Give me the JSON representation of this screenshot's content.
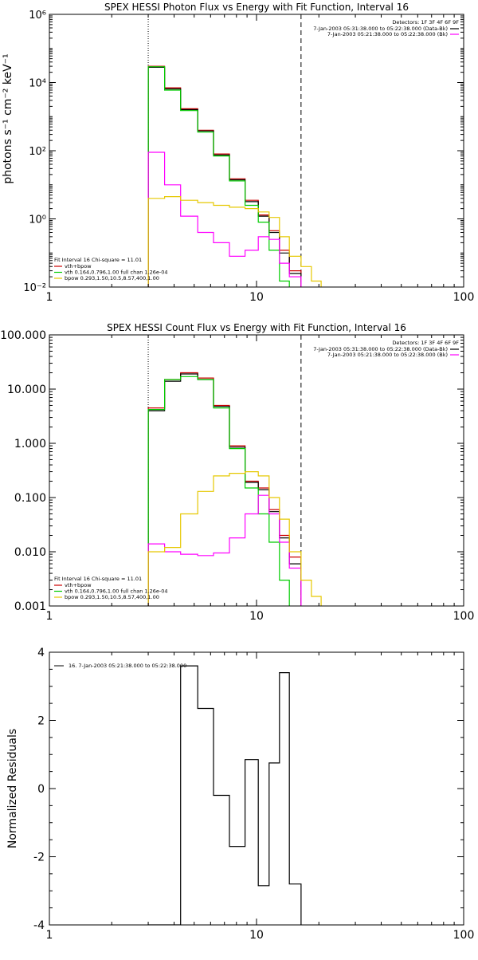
{
  "colors": {
    "data": "#000000",
    "bk": "#cc0000",
    "total": "#ff00ff",
    "vth": "#00cc00",
    "bpow": "#e6c800"
  },
  "chart_data": [
    {
      "type": "line",
      "title": "SPEX HESSI Photon Flux vs Energy with Fit Function, Interval 16",
      "xlabel": "",
      "ylabel": "photons s⁻¹ cm⁻² keV⁻¹",
      "xscale": "log",
      "yscale": "log",
      "xlim": [
        1,
        100
      ],
      "ylim": [
        0.01,
        1000000
      ],
      "x_ticks": [
        "1",
        "10",
        "100"
      ],
      "y_ticks": [
        "10⁻²",
        "10⁰",
        "10²",
        "10⁴",
        "10⁶"
      ],
      "vlines": [
        3,
        16.4
      ],
      "edges": [
        3,
        3.6,
        4.3,
        5.2,
        6.2,
        7.4,
        8.8,
        10.2,
        11.5,
        12.9,
        14.4,
        16.4,
        18.4,
        20.5
      ],
      "series": [
        {
          "key": "bk",
          "values": [
            30000,
            7000,
            1700,
            400,
            80,
            15,
            3.5,
            1.3,
            0.45,
            0.12,
            0.03,
            null,
            null
          ]
        },
        {
          "key": "data",
          "values": [
            28000,
            6500,
            1600,
            380,
            75,
            14,
            3.2,
            1.2,
            0.4,
            0.1,
            0.025,
            null,
            null
          ]
        },
        {
          "key": "vth",
          "values": [
            29000,
            6000,
            1500,
            350,
            70,
            13,
            2.5,
            0.8,
            0.12,
            0.015,
            null,
            null,
            null
          ]
        },
        {
          "key": "total",
          "values": [
            90,
            10,
            1.2,
            0.4,
            0.2,
            0.08,
            0.12,
            0.3,
            0.25,
            0.05,
            0.02,
            null,
            null
          ]
        },
        {
          "key": "bpow",
          "values": [
            4,
            4.5,
            3.5,
            3,
            2.5,
            2.2,
            2,
            1.6,
            1.1,
            0.3,
            0.08,
            0.04,
            0.015
          ]
        }
      ],
      "legend_tr": {
        "head": "Detectors: 1F 3F 4F 6F 9F",
        "lines": [
          "7-Jan-2003 05:31:38.000 to 05:22:38.000 (Data-Bk)",
          "7-Jan-2003 05:21:38.000 to 05:22:38.000 (Bk)"
        ]
      },
      "legend_bl": {
        "head": "Fit Interval 16   Chi-square = 11.01",
        "lines": [
          "vth+bpow",
          "vth 0.164,0.796,1.00  full chan 1.26e-04",
          "bpow 0.293,1.50,10.5,8.57,400,1.00"
        ]
      }
    },
    {
      "type": "line",
      "title": "SPEX HESSI Count Flux vs Energy with Fit Function, Interval 16",
      "xlabel": "",
      "ylabel": "",
      "xscale": "log",
      "yscale": "log",
      "xlim": [
        1,
        100
      ],
      "ylim": [
        0.001,
        100
      ],
      "x_ticks": [
        "1",
        "10",
        "100"
      ],
      "y_ticks": [
        "0.001",
        "0.010",
        "0.100",
        "1.000",
        "10.000",
        "100.000"
      ],
      "vlines": [
        3,
        16.4
      ],
      "edges": [
        3,
        3.6,
        4.3,
        5.2,
        6.2,
        7.4,
        8.8,
        10.2,
        11.5,
        12.9,
        14.4,
        16.4,
        18.4,
        20.5
      ],
      "series": [
        {
          "key": "bk",
          "values": [
            4.5,
            15,
            20,
            16,
            5,
            0.9,
            0.2,
            0.15,
            0.06,
            0.02,
            0.008,
            null,
            null
          ]
        },
        {
          "key": "data",
          "values": [
            4,
            14,
            19,
            15,
            4.8,
            0.85,
            0.19,
            0.14,
            0.055,
            0.018,
            0.006,
            null,
            null
          ]
        },
        {
          "key": "vth",
          "values": [
            4.2,
            15,
            17,
            15,
            4.5,
            0.8,
            0.15,
            0.05,
            0.015,
            0.003,
            null,
            null,
            null
          ]
        },
        {
          "key": "total",
          "values": [
            0.014,
            0.01,
            0.009,
            0.0085,
            0.0095,
            0.018,
            0.05,
            0.11,
            0.05,
            0.015,
            0.005,
            null,
            null
          ]
        },
        {
          "key": "bpow",
          "values": [
            0.01,
            0.012,
            0.05,
            0.13,
            0.25,
            0.28,
            0.3,
            0.25,
            0.1,
            0.04,
            0.01,
            0.003,
            0.0015
          ]
        }
      ],
      "legend_tr": {
        "head": "Detectors: 1F 3F 4F 6F 9F",
        "lines": [
          "7-Jan-2003 05:31:38.000 to 05:22:38.000 (Data-Bk)",
          "7-Jan-2003 05:21:38.000 to 05:22:38.000 (Bk)"
        ]
      },
      "legend_bl": {
        "head": "Fit Interval 16   Chi-square = 11.01",
        "lines": [
          "vth+bpow",
          "vth 0.164,0.796,1.00  full chan 1.26e-04",
          "bpow 0.293,1.50,10.5,8.57,400,1.00"
        ]
      }
    },
    {
      "type": "line",
      "title": "",
      "xlabel": "",
      "ylabel": "Normalized Residuals",
      "xscale": "log",
      "yscale": "linear",
      "xlim": [
        1,
        100
      ],
      "ylim": [
        -4,
        4
      ],
      "x_ticks": [
        "1",
        "10",
        "100"
      ],
      "y_ticks": [
        "-4",
        "-2",
        "0",
        "2",
        "4"
      ],
      "edges": [
        3,
        4.3,
        5.2,
        6.2,
        7.4,
        8.8,
        10.2,
        11.5,
        12.9,
        14.4,
        16.4
      ],
      "series": [
        {
          "key": "data",
          "values": [
            -4,
            3.6,
            2.35,
            -0.2,
            -1.7,
            0.85,
            -2.85,
            0.75,
            3.4,
            -2.8
          ]
        }
      ],
      "legend_tl": "16.  7-Jan-2003 05:21:38.000 to 05:22:38.000"
    }
  ]
}
